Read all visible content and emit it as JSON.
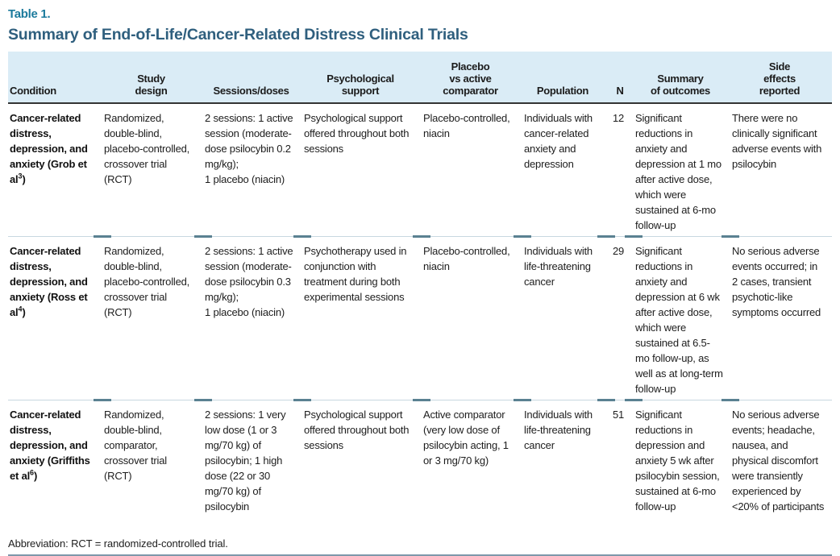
{
  "table_label": "Table 1.",
  "title": "Summary of End-of-Life/Cancer-Related Distress Clinical Trials",
  "colors": {
    "label_accent": "#1b7a9c",
    "title_text": "#2f5f7e",
    "header_background": "#daecf6",
    "header_underline": "#343434",
    "row_divider": "#c7d7e0",
    "divider_tick": "#5a8191",
    "bottom_rule": "#7e98aa"
  },
  "columns": [
    {
      "key": "condition",
      "label": "Condition"
    },
    {
      "key": "study_design",
      "label": "Study\ndesign"
    },
    {
      "key": "sessions_doses",
      "label": "Sessions/doses"
    },
    {
      "key": "psychological_support",
      "label": "Psychological\nsupport"
    },
    {
      "key": "comparator",
      "label": "Placebo\nvs active\ncomparator"
    },
    {
      "key": "population",
      "label": "Population"
    },
    {
      "key": "n",
      "label": "N"
    },
    {
      "key": "outcomes",
      "label": "Summary\nof outcomes"
    },
    {
      "key": "side_effects",
      "label": "Side\neffects\nreported"
    }
  ],
  "rows": [
    {
      "condition": {
        "pre": "Cancer-related distress, depression, and anxiety (Grob et al",
        "ref": "3",
        "post": ")"
      },
      "study_design": "Randomized, double-blind, placebo-controlled, crossover trial (RCT)",
      "sessions_doses": "2 sessions: 1 active session (moderate-dose psilocybin 0.2 mg/kg);\n1 placebo (niacin)",
      "psychological_support": "Psychological support offered throughout both sessions",
      "comparator": "Placebo-controlled, niacin",
      "population": "Individuals with cancer-related anxiety and depression",
      "n": "12",
      "outcomes": "Significant reductions in anxiety and depression at 1 mo after active dose, which were sustained at 6-mo follow-up",
      "side_effects": "There were no clinically significant adverse events with psilocybin"
    },
    {
      "condition": {
        "pre": "Cancer-related distress, depression, and anxiety (Ross et al",
        "ref": "4",
        "post": ")"
      },
      "study_design": "Randomized, double-blind, placebo-controlled, crossover trial (RCT)",
      "sessions_doses": "2 sessions: 1 active session (moderate-dose psilocybin 0.3 mg/kg);\n1 placebo (niacin)",
      "psychological_support": "Psychotherapy used in conjunction with treatment during both experimental sessions",
      "comparator": "Placebo-controlled, niacin",
      "population": "Individuals with life-threatening cancer",
      "n": "29",
      "outcomes": "Significant reductions in anxiety and depression at 6 wk after active dose, which were sustained at 6.5-mo follow-up, as well as at long-term follow-up",
      "side_effects": "No serious adverse events occurred; in 2 cases, transient psychotic-like symptoms occurred"
    },
    {
      "condition": {
        "pre": "Cancer-related distress, depression, and anxiety (Griffiths et al",
        "ref": "6",
        "post": ")"
      },
      "study_design": "Randomized, double-blind, comparator, crossover trial (RCT)",
      "sessions_doses": "2 sessions: 1 very low dose (1 or 3 mg/70 kg) of psilocybin; 1 high dose (22 or 30 mg/70 kg) of psilocybin",
      "psychological_support": "Psychological support offered throughout both sessions",
      "comparator": "Active comparator (very low dose of psilocybin acting, 1 or 3 mg/70 kg)",
      "population": "Individuals with life-threatening cancer",
      "n": "51",
      "outcomes": "Significant reductions in depression and anxiety 5 wk after psilocybin session, sustained at 6-mo follow-up",
      "side_effects": "No serious adverse events; headache, nausea, and physical discomfort were transiently experienced by <20% of participants"
    }
  ],
  "footnote": "Abbreviation: RCT = randomized-controlled trial."
}
